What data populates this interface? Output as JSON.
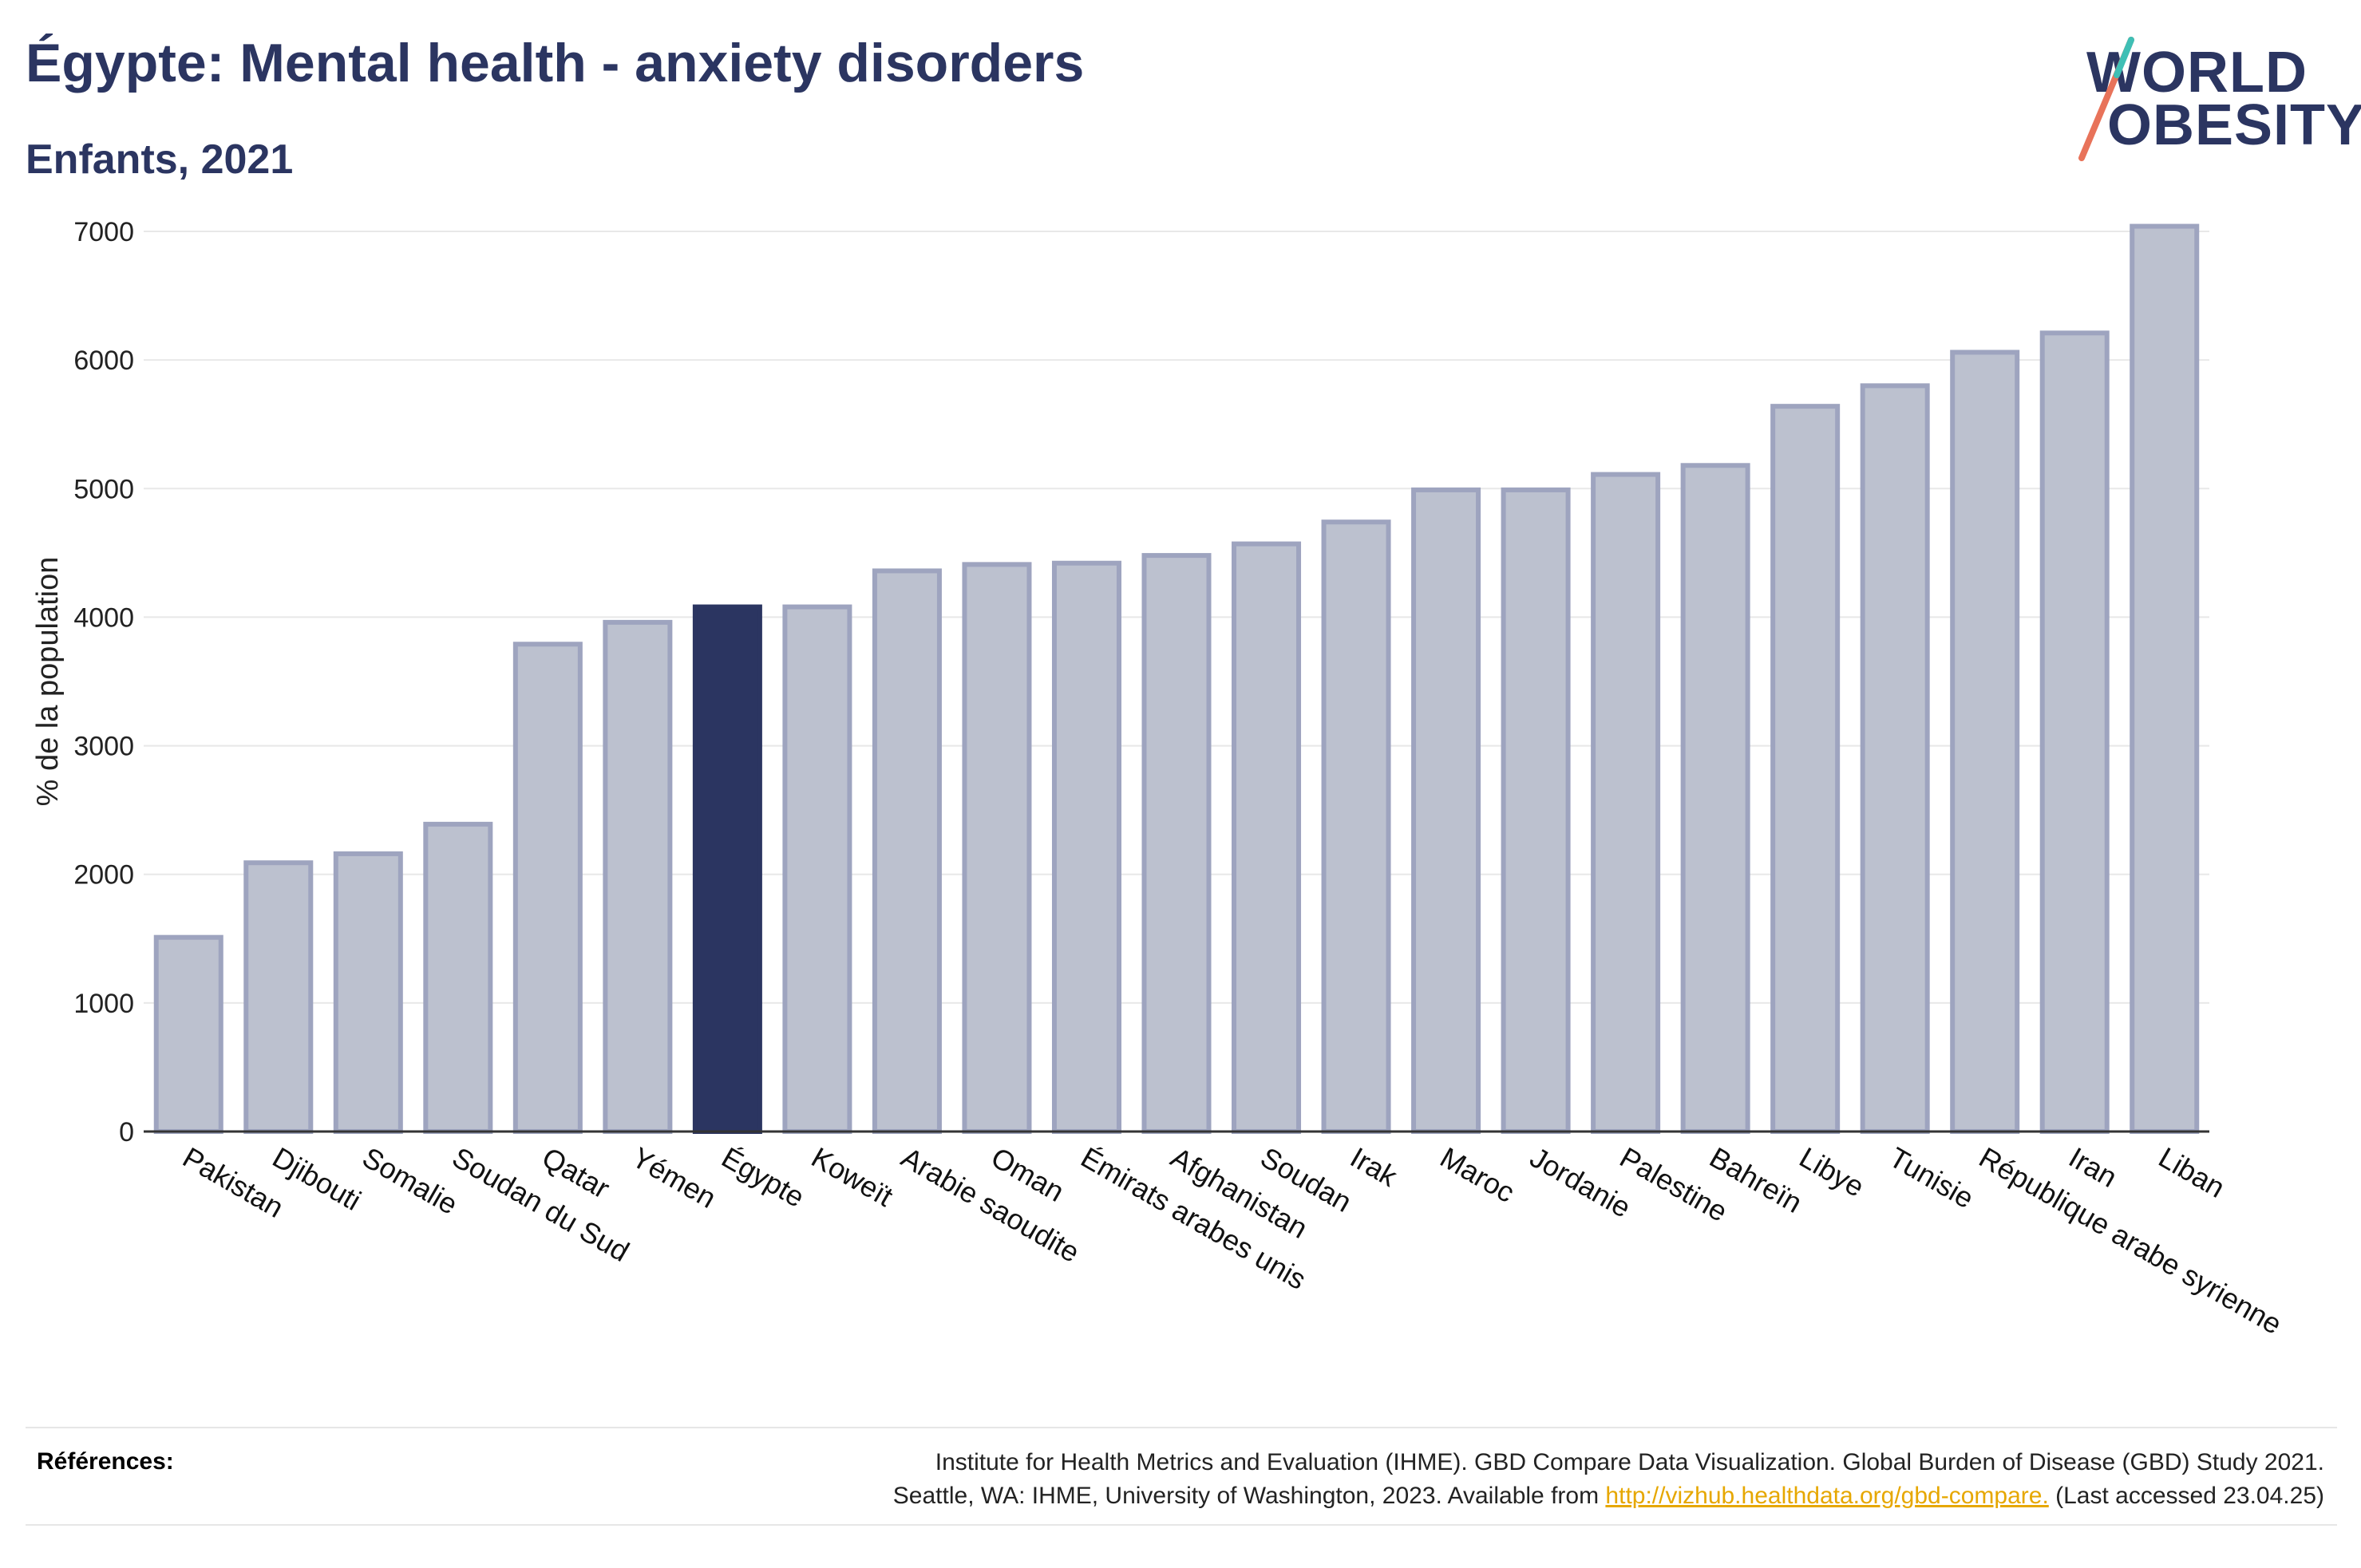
{
  "title": "Égypte: Mental health - anxiety disorders",
  "subtitle": "Enfants, 2021",
  "logo": {
    "line1": "WORLD",
    "line2": "OBESITY"
  },
  "colors": {
    "highlight": "#2b3561",
    "bar_fill": "#bcc1cf",
    "bar_stroke": "#9ea4bf",
    "grid": "#e8e8e8",
    "axis": "#333333",
    "link": "#e6a700"
  },
  "chart_data": {
    "type": "bar",
    "ylabel": "% de la population",
    "xlabel": "",
    "ylim": [
      0,
      7000
    ],
    "yticks": [
      0,
      1000,
      2000,
      3000,
      4000,
      5000,
      6000,
      7000
    ],
    "grid": true,
    "highlight": "Égypte",
    "categories": [
      "Pakistan",
      "Djibouti",
      "Somalie",
      "Soudan du Sud",
      "Qatar",
      "Yémen",
      "Égypte",
      "Koweït",
      "Arabie saoudite",
      "Oman",
      "Émirats arabes unis",
      "Afghanistan",
      "Soudan",
      "Irak",
      "Maroc",
      "Jordanie",
      "Palestine",
      "Bahreïn",
      "Libye",
      "Tunisie",
      "République arabe syrienne",
      "Iran",
      "Liban"
    ],
    "values": [
      1510,
      2090,
      2160,
      2390,
      3790,
      3960,
      4080,
      4080,
      4360,
      4410,
      4420,
      4480,
      4570,
      4740,
      4990,
      4990,
      5110,
      5180,
      5640,
      5800,
      6060,
      6210,
      7040
    ]
  },
  "references": {
    "label": "Références:",
    "line1": "Institute for Health Metrics and Evaluation (IHME). GBD Compare Data Visualization. Global Burden of Disease (GBD) Study 2021.",
    "line2_before": "Seattle, WA: IHME, University of Washington, 2023. Available from",
    "link": "http://vizhub.healthdata.org/gbd-compare.",
    "line2_after": "(Last accessed 23.04.25)"
  }
}
